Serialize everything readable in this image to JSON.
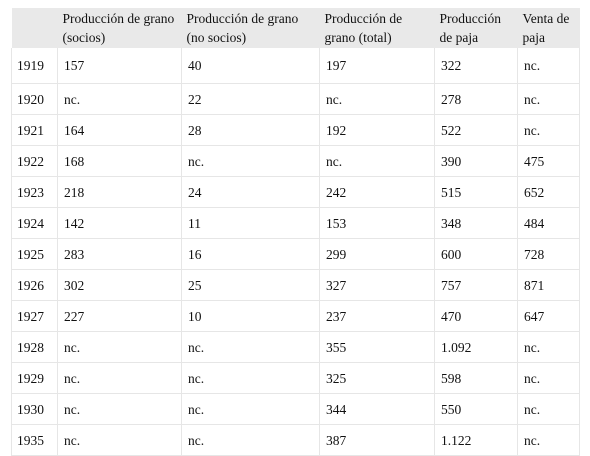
{
  "table": {
    "headers": [
      "",
      "Producción de grano (socios)",
      "Producción de grano (no socios)",
      "Producción de grano (total)",
      "Producción de paja",
      "Venta de paja"
    ],
    "rows": [
      [
        "1919",
        "157",
        "40",
        "197",
        "322",
        "nc."
      ],
      [
        "1920",
        "nc.",
        "22",
        "nc.",
        "278",
        "nc."
      ],
      [
        "1921",
        "164",
        "28",
        "192",
        "522",
        "nc."
      ],
      [
        "1922",
        "168",
        "nc.",
        "nc.",
        "390",
        "475"
      ],
      [
        "1923",
        "218",
        "24",
        "242",
        "515",
        "652"
      ],
      [
        "1924",
        "142",
        "11",
        "153",
        "348",
        "484"
      ],
      [
        "1925",
        "283",
        "16",
        "299",
        "600",
        "728"
      ],
      [
        "1926",
        "302",
        "25",
        "327",
        "757",
        "871"
      ],
      [
        "1927",
        "227",
        "10",
        "237",
        "470",
        "647"
      ],
      [
        "1928",
        "nc.",
        "nc.",
        "355",
        "1.092",
        "nc."
      ],
      [
        "1929",
        "nc.",
        "nc.",
        "325",
        "598",
        "nc."
      ],
      [
        "1930",
        "nc.",
        "nc.",
        "344",
        "550",
        "nc."
      ],
      [
        "1935",
        "nc.",
        "nc.",
        "387",
        "1.122",
        "nc."
      ]
    ]
  }
}
